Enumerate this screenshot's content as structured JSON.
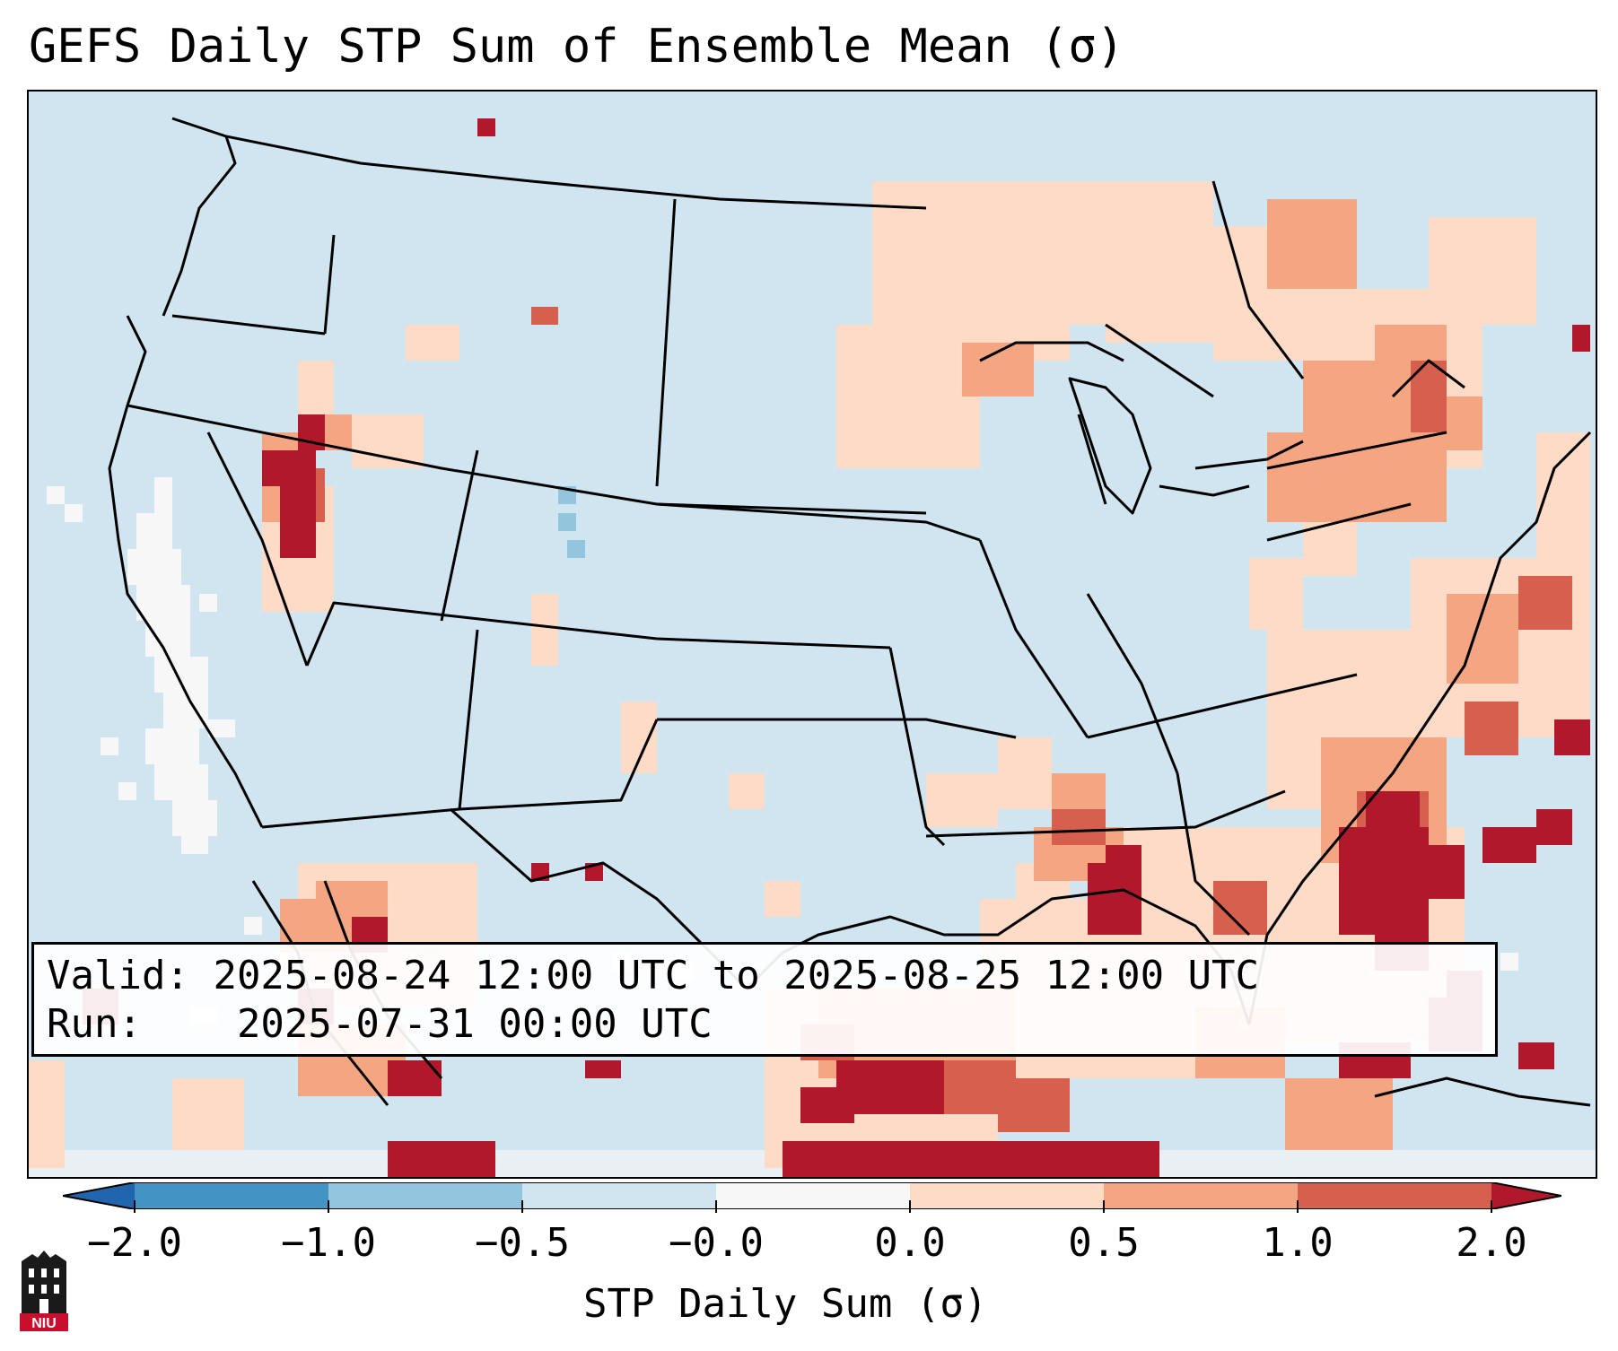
{
  "title": "GEFS Daily STP Sum of Ensemble Mean (σ)",
  "info": {
    "valid_label": "Valid:",
    "valid_value": "2025-08-24 12:00 UTC to 2025-08-25 12:00 UTC",
    "run_label": "Run:",
    "run_value": "2025-07-31 00:00 UTC"
  },
  "colorbar": {
    "label": "STP Daily Sum (σ)",
    "ticks": [
      "−2.0",
      "−1.0",
      "−0.5",
      "−0.0",
      "0.0",
      "0.5",
      "1.0",
      "2.0"
    ],
    "colors": [
      "#4393c3",
      "#92c5de",
      "#d1e5f0",
      "#f7f7f7",
      "#fddbc7",
      "#f4a582",
      "#d6604d"
    ],
    "under_color": "#2166ac",
    "over_color": "#b2182b"
  },
  "map": {
    "region": "CONUS",
    "background_color": "#d1e5f0",
    "hotspots": [
      {
        "name": "gulf-coast-south-texas",
        "level": "high"
      },
      {
        "name": "southeast-atlantic-offshore",
        "level": "high"
      },
      {
        "name": "alabama-mississippi",
        "level": "medium"
      },
      {
        "name": "northeast-new-england",
        "level": "medium"
      },
      {
        "name": "great-lakes-canada",
        "level": "medium"
      },
      {
        "name": "northwest-oregon-idaho",
        "level": "medium"
      },
      {
        "name": "mexico-west",
        "level": "medium"
      }
    ]
  },
  "logo": {
    "text": "NIU"
  }
}
